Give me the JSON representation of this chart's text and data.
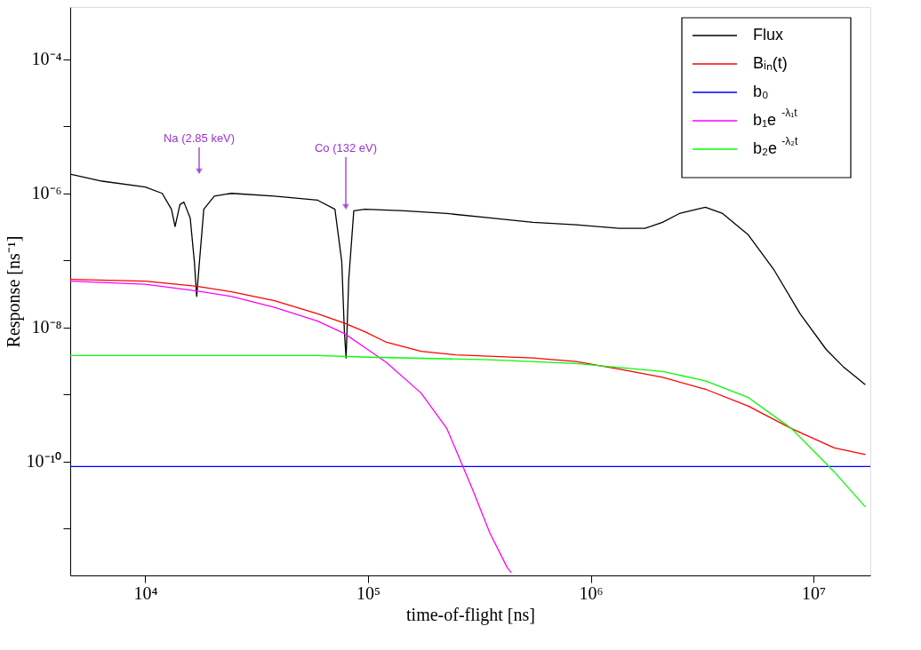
{
  "chart_data": {
    "type": "line",
    "xlabel": "time-of-flight [ns]",
    "ylabel": "Response [ns⁻¹]",
    "log": "xy",
    "xlim": [
      4600,
      18000000
    ],
    "ylim": [
      2e-12,
      0.0006
    ],
    "xticks": [
      {
        "value": 10000,
        "label": "10⁴"
      },
      {
        "value": 100000,
        "label": "10⁵"
      },
      {
        "value": 1000000,
        "label": "10⁶"
      },
      {
        "value": 10000000,
        "label": "10⁷"
      }
    ],
    "yticks": [
      {
        "value": 1e-11,
        "label": null
      },
      {
        "value": 1e-10,
        "label": "10⁻¹⁰"
      },
      {
        "value": 1e-09,
        "label": null
      },
      {
        "value": 1e-08,
        "label": "10⁻⁸"
      },
      {
        "value": 1e-07,
        "label": null
      },
      {
        "value": 1e-06,
        "label": "10⁻⁶"
      },
      {
        "value": 1e-05,
        "label": null
      },
      {
        "value": 0.0001,
        "label": "10⁻⁴"
      }
    ],
    "grid": false,
    "legend": "top right",
    "marker": "none",
    "annotations": [
      "Na (2.85  keV)",
      "Co (132 eV)"
    ],
    "series": [
      {
        "name": "Flux",
        "color": "#000000",
        "x": [
          4600,
          6400,
          10000,
          11900,
          13100,
          13600,
          14300,
          14900,
          15900,
          16600,
          17000,
          17500,
          18300,
          20400,
          24400,
          38000,
          59400,
          71000,
          76200,
          78300,
          79700,
          81900,
          86300,
          96900,
          144800,
          226000,
          352600,
          550000,
          859000,
          1340000,
          1750000,
          2100000,
          2500000,
          3270000,
          3910000,
          5100000,
          6670000,
          8710000,
          11400000,
          13600000,
          17100000
        ],
        "values": [
          1.94e-06,
          1.52e-06,
          1.24e-06,
          1e-06,
          5.8e-07,
          3.2e-07,
          6.8e-07,
          7.4e-07,
          4.3e-07,
          9.6e-08,
          2.9e-08,
          9.6e-08,
          5.8e-07,
          9.1e-07,
          1e-06,
          9.1e-07,
          7.9e-07,
          5.8e-07,
          9.6e-08,
          8.6e-09,
          3.5e-09,
          5.2e-08,
          5.5e-07,
          5.8e-07,
          5.5e-07,
          5e-07,
          4.3e-07,
          3.7e-07,
          3.4e-07,
          3e-07,
          3e-07,
          3.7e-07,
          5e-07,
          6.2e-07,
          5e-07,
          2.4e-07,
          7.1e-08,
          1.6e-08,
          4.7e-09,
          2.6e-09,
          1.4e-09
        ]
      },
      {
        "name": "Bᵢₙ(t)",
        "color": "#ff0000",
        "x": [
          4600,
          10000,
          17000,
          24400,
          38000,
          59400,
          78300,
          96900,
          121000,
          173000,
          247000,
          550000,
          859000,
          1340000,
          2100000,
          3270000,
          5100000,
          7960000,
          12400000,
          17100000
        ],
        "values": [
          5.2e-08,
          4.9e-08,
          4.1e-08,
          3.4e-08,
          2.5e-08,
          1.6e-08,
          1.16e-08,
          8.6e-09,
          6e-09,
          4.4e-09,
          3.9e-09,
          3.5e-09,
          3.1e-09,
          2.4e-09,
          1.8e-09,
          1.2e-09,
          6.7e-10,
          3.1e-10,
          1.6e-10,
          1.27e-10
        ]
      },
      {
        "name": "b₀",
        "color": "#0000ff",
        "x": [
          4600,
          18000000
        ],
        "values": [
          8.4e-11,
          8.4e-11
        ]
      },
      {
        "name": "b₁e$^{-λ₁t}$",
        "color": "#ff00ff",
        "x": [
          4600,
          10000,
          17000,
          24400,
          38000,
          59400,
          78300,
          96900,
          121000,
          173000,
          226000,
          295000,
          352600,
          422000,
          440000
        ],
        "values": [
          4.9e-08,
          4.4e-08,
          3.5e-08,
          2.9e-08,
          2e-08,
          1.24e-08,
          8.1e-09,
          5e-09,
          3e-09,
          1.05e-09,
          3.1e-10,
          3.8e-11,
          8.5e-12,
          2.6e-12,
          2.2e-12
        ]
      },
      {
        "name": "b₂e$^{-λ₂t}$",
        "color": "#00ff00",
        "x": [
          4600,
          59400,
          101000,
          352600,
          859000,
          2100000,
          3270000,
          5100000,
          7960000,
          12400000,
          17100000
        ],
        "values": [
          3.8e-09,
          3.8e-09,
          3.6e-09,
          3.3e-09,
          2.9e-09,
          2.2e-09,
          1.6e-09,
          9e-10,
          3.1e-10,
          7e-11,
          2.1e-11
        ]
      }
    ]
  }
}
